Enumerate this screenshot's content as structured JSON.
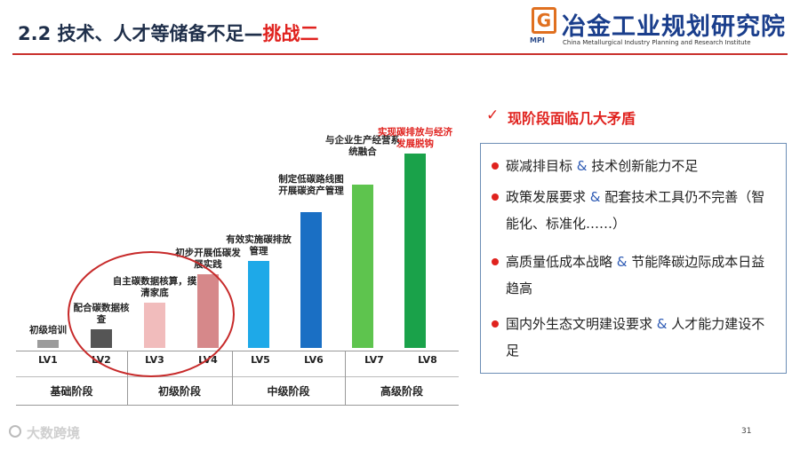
{
  "header": {
    "title": "2.2 技术、人才等储备不足—",
    "title_accent": "挑战二",
    "org_badge": "G",
    "org_badge_sub": "MPI",
    "org_name_cn": "冶金工业规划研究院",
    "org_name_en": "China Metallurgical Industry Planning and Research Institute"
  },
  "chart_data": {
    "type": "bar",
    "categories": [
      "LV1",
      "LV2",
      "LV3",
      "LV4",
      "LV5",
      "LV6",
      "LV7",
      "LV8"
    ],
    "values": [
      8,
      18,
      43,
      70,
      83,
      130,
      156,
      186
    ],
    "labels": [
      "初级培训",
      "配合碳数据核查",
      "自主碳数据核算，摸清家底",
      "初步开展低碳发展实践",
      "有效实施碳排放管理",
      "制定低碳路线图开展碳资产管理",
      "与企业生产经营系统融合",
      "实现碳排放与经济发展脱钩"
    ],
    "colors": [
      "#9c9c9c",
      "#555555",
      "#f1bcbc",
      "#d6888a",
      "#1ea9e8",
      "#1a6fc4",
      "#5ec44e",
      "#1aa24a"
    ],
    "stages": [
      "基础阶段",
      "初级阶段",
      "中级阶段",
      "高级阶段"
    ],
    "ylim": [
      0,
      200
    ]
  },
  "panel": {
    "check_icon": "check-icon",
    "heading": "现阶段面临几大矛盾",
    "items": [
      {
        "part1": "碳减排目标 ",
        "amp": "&",
        "part2": " 技术创新能力不足"
      },
      {
        "part1": "政策发展要求 ",
        "amp": "&",
        "part2": " 配套技术工具仍不完善（智能化、标准化……）"
      },
      {
        "part1": "高质量低成本战略 ",
        "amp": "&",
        "part2": " 节能降碳边际成本日益趋高"
      },
      {
        "part1": "国内外生态文明建设要求 ",
        "amp": "&",
        "part2": " 人才能力建设不足"
      }
    ]
  },
  "footer": {
    "page_number": "31",
    "watermark": "大数跨境"
  }
}
